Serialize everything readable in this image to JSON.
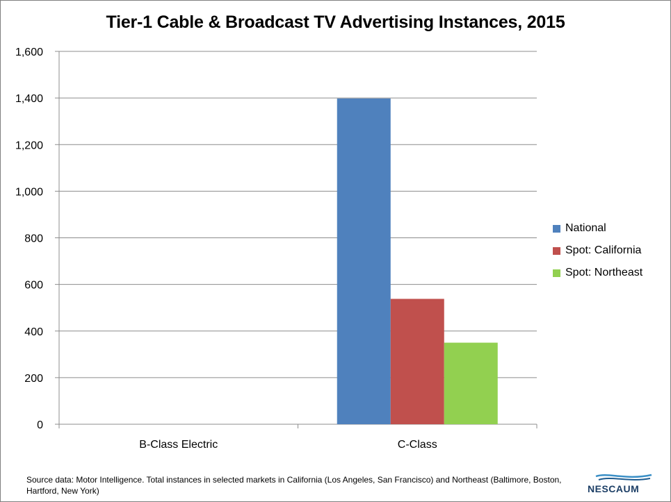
{
  "colors": {
    "National": "#4f81bd",
    "Spot: California": "#c0504d",
    "Spot: Northeast": "#92d050",
    "grid": "#8c8c8c",
    "axis": "#8c8c8c",
    "brand": "#1d3f66"
  },
  "chart_data": {
    "type": "bar",
    "title": "Tier-1 Cable & Broadcast TV Advertising Instances, 2015",
    "xlabel": "",
    "ylabel": "",
    "categories": [
      "B-Class Electric",
      "C-Class"
    ],
    "series": [
      {
        "name": "National",
        "values": [
          0,
          1398
        ]
      },
      {
        "name": "Spot: California",
        "values": [
          0,
          538
        ]
      },
      {
        "name": "Spot: Northeast",
        "values": [
          0,
          350
        ]
      }
    ],
    "ylim": [
      0,
      1600
    ],
    "yticks": [
      0,
      200,
      400,
      600,
      800,
      1000,
      1200,
      1400,
      1600
    ],
    "ytick_labels": [
      "0",
      "200",
      "400",
      "600",
      "800",
      "1,000",
      "1,200",
      "1,400",
      "1,600"
    ],
    "grid": true,
    "legend_position": "right"
  },
  "legend": [
    {
      "label": "National",
      "icon": "blue-square-swatch"
    },
    {
      "label": "Spot: California",
      "icon": "red-square-swatch"
    },
    {
      "label": "Spot: Northeast",
      "icon": "green-square-swatch"
    }
  ],
  "footer": {
    "source_text": "Source data: Motor Intelligence. Total instances in selected markets in California (Los Angeles, San Francisco) and Northeast (Baltimore, Boston, Hartford, New York)",
    "logo_text": "NESCAUM"
  }
}
